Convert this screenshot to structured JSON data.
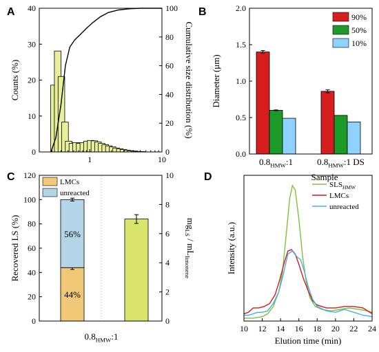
{
  "chart_data": [
    {
      "panel": "A",
      "type": "bar",
      "x_scale": "log",
      "xlabel": "",
      "ylabel": "Counts (%)",
      "ylabel_right": "Cumulative size distribution (%)",
      "xlim": [
        0.2,
        10
      ],
      "ylim": [
        0,
        40
      ],
      "ylim_right": [
        0,
        100
      ],
      "xticks": [
        1,
        10
      ],
      "yticks": [
        0,
        10,
        20,
        30,
        40
      ],
      "yticks_right": [
        0,
        20,
        40,
        60,
        80,
        100
      ],
      "bar_color": "#e8ee9a",
      "bars": [
        {
          "x": 0.32,
          "y": 18.6
        },
        {
          "x": 0.36,
          "y": 28.1
        },
        {
          "x": 0.405,
          "y": 21.0
        },
        {
          "x": 0.455,
          "y": 8.3
        },
        {
          "x": 0.51,
          "y": 3.0
        },
        {
          "x": 0.575,
          "y": 2.4
        },
        {
          "x": 0.645,
          "y": 2.6
        },
        {
          "x": 0.725,
          "y": 2.4
        },
        {
          "x": 0.815,
          "y": 2.6
        },
        {
          "x": 0.915,
          "y": 3.0
        },
        {
          "x": 1.03,
          "y": 3.2
        },
        {
          "x": 1.16,
          "y": 3.1
        },
        {
          "x": 1.3,
          "y": 2.8
        },
        {
          "x": 1.46,
          "y": 2.4
        },
        {
          "x": 1.64,
          "y": 2.0
        },
        {
          "x": 1.84,
          "y": 1.7
        },
        {
          "x": 2.07,
          "y": 1.4
        },
        {
          "x": 2.32,
          "y": 1.1
        },
        {
          "x": 2.61,
          "y": 0.9
        },
        {
          "x": 2.93,
          "y": 0.7
        },
        {
          "x": 3.29,
          "y": 0.5
        },
        {
          "x": 3.7,
          "y": 0.35
        },
        {
          "x": 4.15,
          "y": 0.25
        },
        {
          "x": 4.66,
          "y": 0.15
        },
        {
          "x": 5.24,
          "y": 0.1
        }
      ],
      "cumulative": [
        {
          "x": 0.29,
          "y": 0
        },
        {
          "x": 0.34,
          "y": 10
        },
        {
          "x": 0.4,
          "y": 33
        },
        {
          "x": 0.46,
          "y": 60
        },
        {
          "x": 0.53,
          "y": 73
        },
        {
          "x": 0.62,
          "y": 78
        },
        {
          "x": 0.75,
          "y": 82
        },
        {
          "x": 0.9,
          "y": 86
        },
        {
          "x": 1.1,
          "y": 90
        },
        {
          "x": 1.4,
          "y": 94
        },
        {
          "x": 1.8,
          "y": 97
        },
        {
          "x": 2.5,
          "y": 98.8
        },
        {
          "x": 3.5,
          "y": 99.6
        },
        {
          "x": 5,
          "y": 100
        },
        {
          "x": 10,
          "y": 100
        }
      ]
    },
    {
      "panel": "B",
      "type": "bar",
      "xlabel": "Sample",
      "ylabel": "Diameter (μm)",
      "ylim": [
        0,
        2.0
      ],
      "yticks": [
        "0.0",
        "0.5",
        "1.0",
        "1.5",
        "2.0"
      ],
      "categories": [
        {
          "base": "0.8",
          "sub": "HMW",
          "tail": ":1"
        },
        {
          "base": "0.8",
          "sub": "HMW",
          "tail": ":1 DS"
        }
      ],
      "series": [
        {
          "name": "90%",
          "color": "#d51f1f",
          "values": [
            1.4,
            0.86
          ],
          "errors": [
            0.02,
            0.02
          ]
        },
        {
          "name": "50%",
          "color": "#1c9a28",
          "values": [
            0.6,
            0.53
          ],
          "errors": [
            0.005,
            0
          ]
        },
        {
          "name": "10%",
          "color": "#90d2ff",
          "values": [
            0.49,
            0.44
          ],
          "errors": [
            0,
            0
          ]
        }
      ],
      "legend_position": "top-right"
    },
    {
      "panel": "C",
      "type": "bar",
      "xlabel": "",
      "ylabel": "Recovered LS (%)",
      "ylabel_right": {
        "prefix": "mg",
        "sub1": "LS",
        "mid": " / mL",
        "sub2": "limonene"
      },
      "ylim": [
        0,
        120
      ],
      "ylim_right": [
        0,
        10
      ],
      "yticks": [
        0,
        20,
        40,
        60,
        80,
        100,
        120
      ],
      "yticks_right": [
        0,
        2,
        4,
        6,
        8,
        10
      ],
      "category": {
        "base": "0.8",
        "sub": "HMW",
        "tail": ":1"
      },
      "stack": [
        {
          "name": "LMCs",
          "color": "#f0c878",
          "value": 44,
          "error": 1.5,
          "label": "44%"
        },
        {
          "name": "unreacted",
          "color": "#b4d4e8",
          "value": 56,
          "error": 1.2,
          "label": "56%"
        }
      ],
      "right_bar": {
        "color": "#d9e46a",
        "value": 7.0,
        "error": 0.3
      },
      "legend_position": "top-left"
    },
    {
      "panel": "D",
      "type": "line",
      "xlabel": "Elution time (min)",
      "ylabel": "Intensity (a.u.)",
      "xlim": [
        10,
        24
      ],
      "xticks": [
        10,
        12,
        14,
        16,
        18,
        20,
        22,
        24
      ],
      "ylim": [
        0,
        1
      ],
      "series": [
        {
          "name": "SLS",
          "sub": "HMW",
          "color": "#80c040",
          "x": [
            10,
            11,
            12,
            12.6,
            13.2,
            13.8,
            14.2,
            14.6,
            15,
            15.3,
            15.6,
            16,
            16.4,
            16.8,
            17.2,
            17.8,
            18.5,
            19.5,
            20.5,
            21.5,
            22.5,
            23.5,
            24
          ],
          "y": [
            0.02,
            0.02,
            0.03,
            0.05,
            0.1,
            0.2,
            0.33,
            0.58,
            0.84,
            0.93,
            0.9,
            0.7,
            0.45,
            0.27,
            0.16,
            0.1,
            0.08,
            0.07,
            0.08,
            0.09,
            0.08,
            0.07,
            0.06
          ]
        },
        {
          "name": "LMCs",
          "color": "#d41a1a",
          "x": [
            10,
            10.5,
            11,
            11.6,
            12.2,
            12.8,
            13.4,
            13.9,
            14.4,
            14.8,
            15.2,
            15.6,
            16,
            16.5,
            17,
            17.5,
            18,
            19,
            20,
            21,
            22,
            23,
            24
          ],
          "y": [
            0.05,
            0.06,
            0.09,
            0.09,
            0.1,
            0.12,
            0.18,
            0.28,
            0.4,
            0.48,
            0.49,
            0.46,
            0.39,
            0.29,
            0.21,
            0.14,
            0.11,
            0.09,
            0.09,
            0.1,
            0.1,
            0.09,
            0.05
          ]
        },
        {
          "name": "unreacted",
          "color": "#40b0e8",
          "x": [
            10,
            10.5,
            11,
            11.5,
            12,
            12.6,
            13.2,
            13.8,
            14.3,
            14.8,
            15.3,
            15.8,
            16.2,
            16.6,
            17,
            17.5,
            18,
            19,
            20,
            21,
            22,
            23,
            24
          ],
          "y": [
            0.04,
            0.04,
            0.05,
            0.06,
            0.06,
            0.07,
            0.12,
            0.2,
            0.32,
            0.46,
            0.48,
            0.44,
            0.42,
            0.34,
            0.24,
            0.15,
            0.1,
            0.07,
            0.06,
            0.08,
            0.06,
            0.04,
            0.03
          ]
        }
      ],
      "legend_position": "top-right"
    }
  ]
}
